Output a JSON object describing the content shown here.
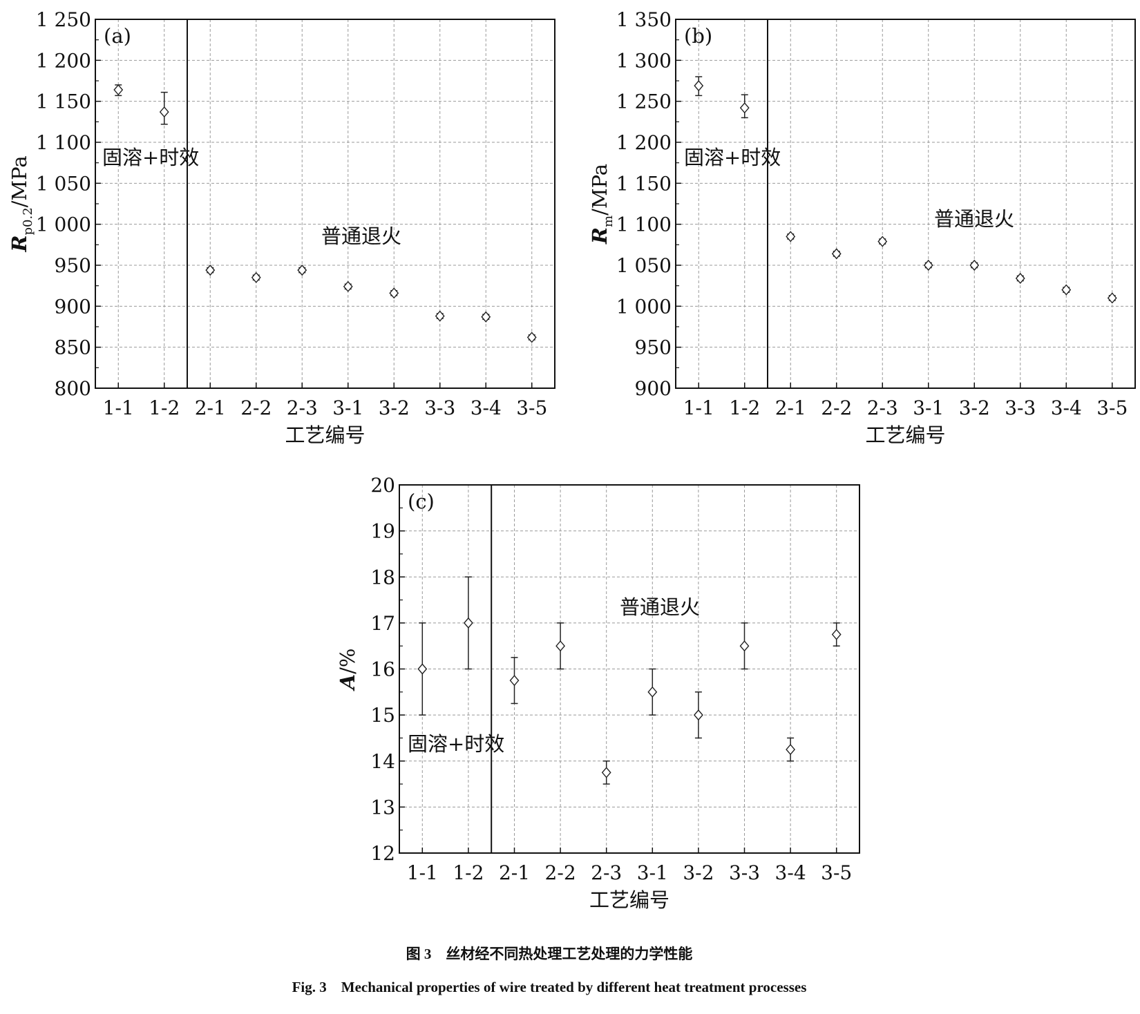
{
  "figure": {
    "caption_cn": "图 3　丝材经不同热处理工艺处理的力学性能",
    "caption_en": "Fig. 3　Mechanical properties of wire treated by different heat treatment processes"
  },
  "chart_data": [
    {
      "type": "scatter",
      "panel_label": "(a)",
      "xlabel": "工艺编号",
      "ylabel": "R",
      "ylabel_sub": "p0.2",
      "ylabel_unit": "/MPa",
      "categories": [
        "1-1",
        "1-2",
        "2-1",
        "2-2",
        "2-3",
        "3-1",
        "3-2",
        "3-3",
        "3-4",
        "3-5"
      ],
      "values": [
        1164,
        1137,
        944,
        935,
        944,
        924,
        916,
        888,
        887,
        862
      ],
      "err_low": [
        1157,
        1122,
        941,
        932,
        941,
        921,
        913,
        885,
        884,
        859
      ],
      "err_high": [
        1170,
        1161,
        947,
        938,
        947,
        927,
        919,
        891,
        890,
        865
      ],
      "ylim": [
        800,
        1250
      ],
      "yticks": [
        800,
        850,
        900,
        950,
        1000,
        1050,
        1100,
        1150,
        1200,
        1250
      ],
      "ytick_labels": [
        "800",
        "850",
        "900",
        "950",
        "1 000",
        "1 050",
        "1 100",
        "1 150",
        "1 200",
        "1 250"
      ],
      "grid": true,
      "marker": "open-diamond",
      "group_labels": [
        "固溶+时效",
        "普通退火"
      ]
    },
    {
      "type": "scatter",
      "panel_label": "(b)",
      "xlabel": "工艺编号",
      "ylabel": "R",
      "ylabel_sub": "m",
      "ylabel_unit": "/MPa",
      "categories": [
        "1-1",
        "1-2",
        "2-1",
        "2-2",
        "2-3",
        "3-1",
        "3-2",
        "3-3",
        "3-4",
        "3-5"
      ],
      "values": [
        1269,
        1242,
        1085,
        1064,
        1079,
        1050,
        1050,
        1034,
        1020,
        1010
      ],
      "err_low": [
        1257,
        1230,
        1082,
        1061,
        1076,
        1047,
        1047,
        1031,
        1017,
        1007
      ],
      "err_high": [
        1280,
        1258,
        1088,
        1067,
        1082,
        1053,
        1053,
        1037,
        1023,
        1013
      ],
      "ylim": [
        900,
        1350
      ],
      "yticks": [
        900,
        950,
        1000,
        1050,
        1100,
        1150,
        1200,
        1250,
        1300,
        1350
      ],
      "ytick_labels": [
        "900",
        "950",
        "1 000",
        "1 050",
        "1 100",
        "1 150",
        "1 200",
        "1 250",
        "1 300",
        "1 350"
      ],
      "grid": true,
      "marker": "open-diamond",
      "group_labels": [
        "固溶+时效",
        "普通退火"
      ]
    },
    {
      "type": "scatter",
      "panel_label": "(c)",
      "xlabel": "工艺编号",
      "ylabel": "A",
      "ylabel_sub": "",
      "ylabel_unit": "/%",
      "categories": [
        "1-1",
        "1-2",
        "2-1",
        "2-2",
        "2-3",
        "3-1",
        "3-2",
        "3-3",
        "3-4",
        "3-5"
      ],
      "values": [
        16,
        17,
        15.75,
        16.5,
        13.75,
        15.5,
        15,
        16.5,
        14.25,
        16.75
      ],
      "err_low": [
        15,
        16,
        15.25,
        16,
        13.5,
        15,
        14.5,
        16,
        14,
        16.5
      ],
      "err_high": [
        17,
        18,
        16.25,
        17,
        14,
        16,
        15.5,
        17,
        14.5,
        17
      ],
      "ylim": [
        12,
        20
      ],
      "yticks": [
        12,
        13,
        14,
        15,
        16,
        17,
        18,
        19,
        20
      ],
      "ytick_labels": [
        "12",
        "13",
        "14",
        "15",
        "16",
        "17",
        "18",
        "19",
        "20"
      ],
      "grid": true,
      "marker": "open-diamond",
      "group_labels": [
        "固溶+时效",
        "普通退火"
      ]
    }
  ]
}
